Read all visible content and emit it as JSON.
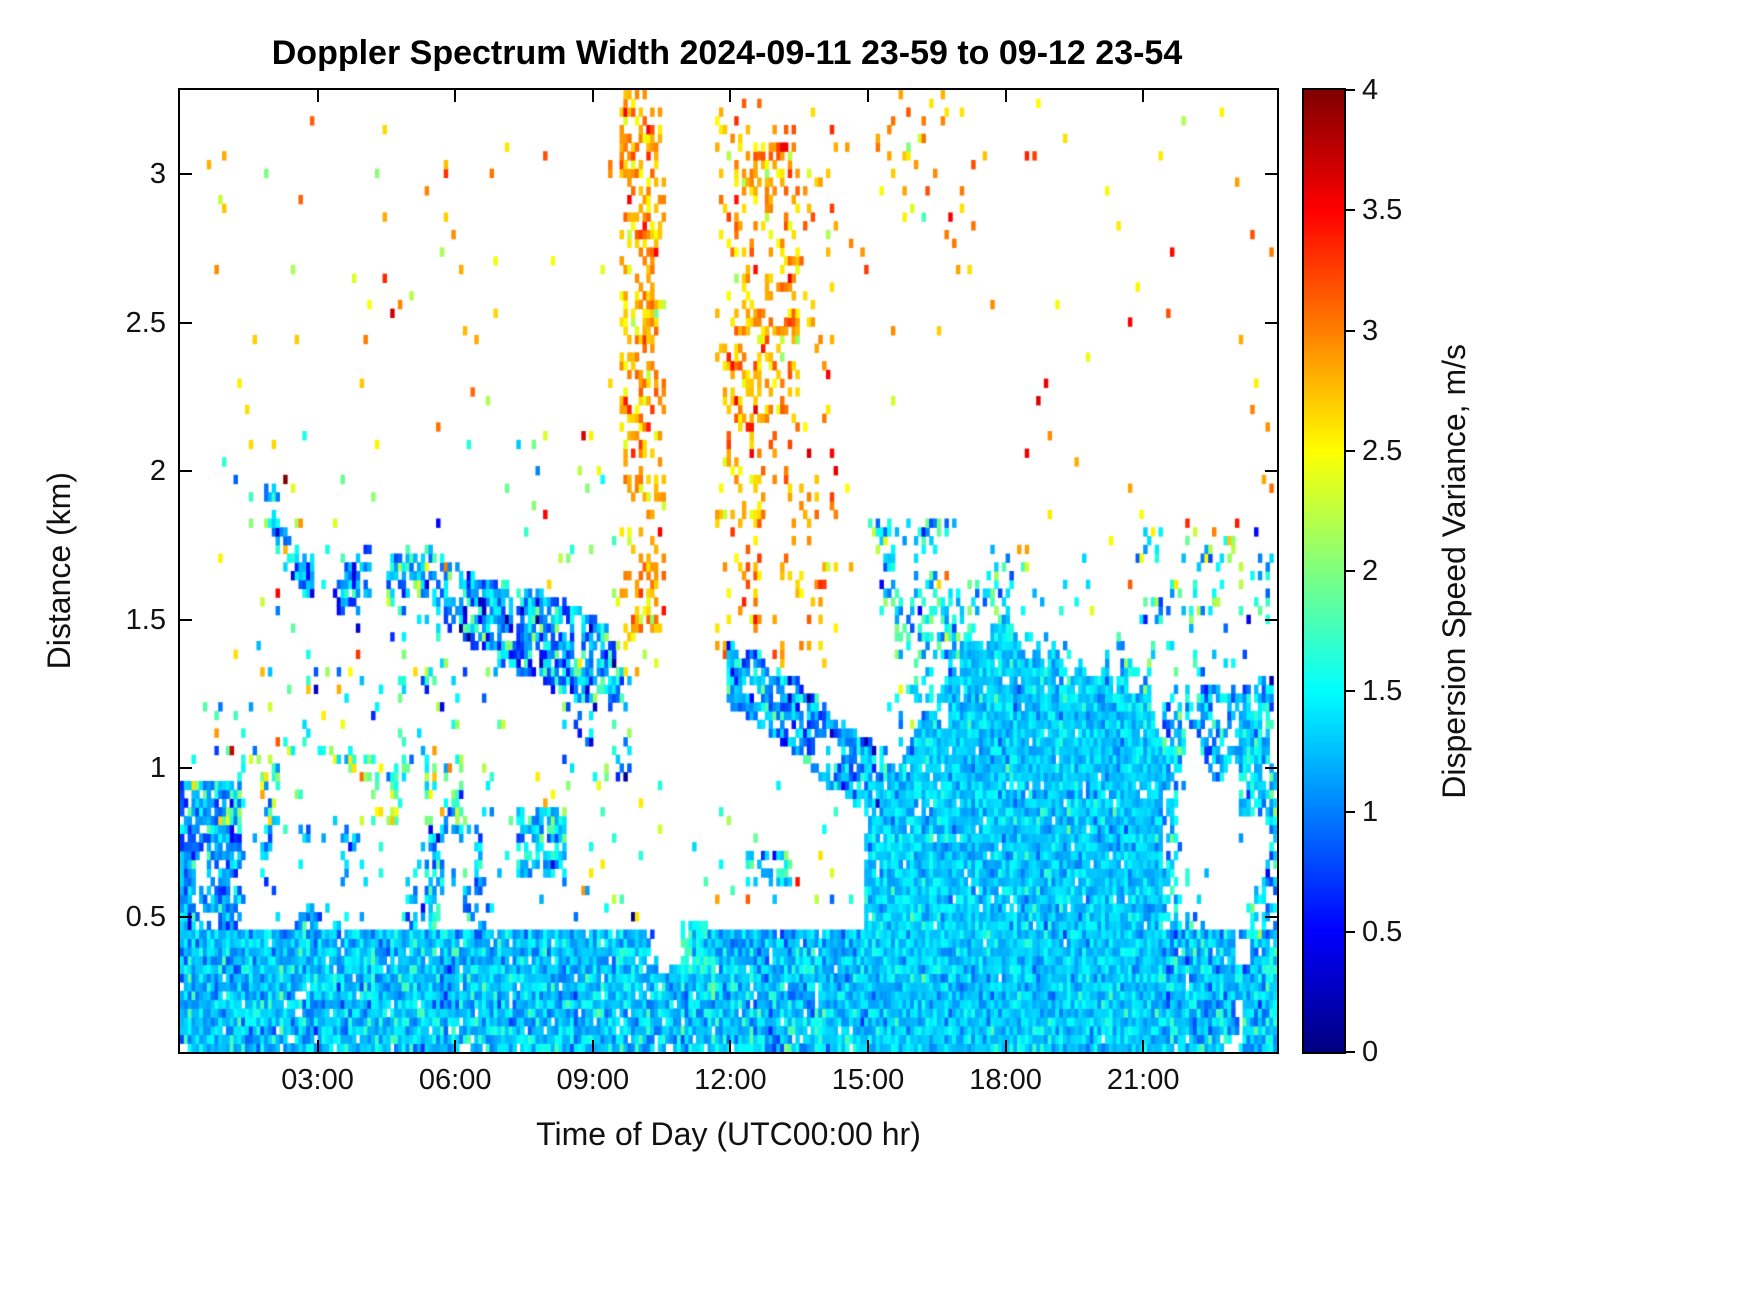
{
  "chart_data": {
    "type": "heatmap",
    "title": "Doppler Spectrum Width 2024-09-11 23-59 to 09-12 23-54",
    "xlabel": "Time of Day (UTC00:00 hr)",
    "ylabel": "Distance (km)",
    "colormap": "jet",
    "value_units": "m/s",
    "x_range_hours": [
      0,
      23.917
    ],
    "y_range_km": [
      0.046,
      3.283
    ],
    "grid": {
      "cols": 287,
      "rows": 110
    },
    "seed": 20240912,
    "colorbar": {
      "label": "Dispersion Speed Variance, m/s",
      "min": 0,
      "max": 4,
      "ticks": [
        {
          "v": 0,
          "label": "0"
        },
        {
          "v": 0.5,
          "label": "0.5"
        },
        {
          "v": 1,
          "label": "1"
        },
        {
          "v": 1.5,
          "label": "1.5"
        },
        {
          "v": 2,
          "label": "2"
        },
        {
          "v": 2.5,
          "label": "2.5"
        },
        {
          "v": 3,
          "label": "3"
        },
        {
          "v": 3.5,
          "label": "3.5"
        },
        {
          "v": 4,
          "label": "4"
        }
      ]
    },
    "x_ticks": [
      {
        "hour": 3,
        "label": "03:00"
      },
      {
        "hour": 6,
        "label": "06:00"
      },
      {
        "hour": 9,
        "label": "09:00"
      },
      {
        "hour": 12,
        "label": "12:00"
      },
      {
        "hour": 15,
        "label": "15:00"
      },
      {
        "hour": 18,
        "label": "18:00"
      },
      {
        "hour": 21,
        "label": "21:00"
      }
    ],
    "y_ticks": [
      {
        "v": 0.5,
        "label": "0.5"
      },
      {
        "v": 1,
        "label": "1"
      },
      {
        "v": 1.5,
        "label": "1.5"
      },
      {
        "v": 2,
        "label": "2"
      },
      {
        "v": 2.5,
        "label": "2.5"
      },
      {
        "v": 3,
        "label": "3"
      }
    ],
    "regions": [
      {
        "name": "surface-layer",
        "t": [
          0,
          23.95
        ],
        "d": [
          0.046,
          0.46
        ],
        "density": 0.95,
        "v": [
          1.25,
          0.2
        ],
        "noiseScale": 1.6,
        "holeThresh": 0.1
      },
      {
        "name": "surface-green-speckle",
        "t": [
          0,
          23.95
        ],
        "d": [
          0.046,
          0.4
        ],
        "density": 0.07,
        "v": [
          1.65,
          0.15
        ]
      },
      {
        "name": "lowleft-mid-mottle",
        "t": [
          0,
          6.8
        ],
        "d": [
          0.46,
          0.8
        ],
        "density": 0.5,
        "v": [
          1.2,
          0.35
        ],
        "noiseScale": 2.2,
        "holeThresh": 0.42
      },
      {
        "name": "lowleft-blue-patch",
        "t": [
          0,
          1.3
        ],
        "d": [
          0.46,
          0.95
        ],
        "density": 0.7,
        "v": [
          1.05,
          0.3
        ],
        "noiseScale": 2.0,
        "holeThresh": 0.25
      },
      {
        "name": "lowleft-upper-speckle",
        "t": [
          0,
          6.8
        ],
        "d": [
          0.8,
          1.05
        ],
        "density": 0.38,
        "v": [
          1.8,
          0.55
        ],
        "noiseScale": 2.5,
        "holeThresh": 0.35
      },
      {
        "name": "lowleft-sparse-above",
        "t": [
          0,
          7.2
        ],
        "d": [
          1.05,
          1.35
        ],
        "density": 0.07,
        "v": [
          1.8,
          0.7
        ]
      },
      {
        "name": "morning-mid-sparse",
        "t": [
          6.8,
          11.5
        ],
        "d": [
          0.5,
          1.0
        ],
        "density": 0.05,
        "v": [
          1.7,
          0.7
        ]
      },
      {
        "name": "blob-0800",
        "t": [
          7.3,
          8.45
        ],
        "d": [
          0.62,
          0.86
        ],
        "density": 0.75,
        "v": [
          1.25,
          0.3
        ],
        "noiseScale": 2.0,
        "holeThresh": 0.15
      },
      {
        "name": "clear-wedge-1100",
        "t": [
          10.2,
          11.15
        ],
        "d": [
          0.33,
          1.05
        ],
        "clear": true,
        "density": 0.9,
        "noiseScale": 2.0,
        "holeThresh": 0.15
      },
      {
        "name": "green-patch-1100",
        "t": [
          10.95,
          11.5
        ],
        "d": [
          0.3,
          0.5
        ],
        "density": 0.7,
        "v": [
          1.6,
          0.15
        ],
        "noiseScale": 2.0,
        "holeThresh": 0.2
      },
      {
        "name": "band-start-streak",
        "t": [
          1.8,
          2.2
        ],
        "d": [
          1.75,
          2.0
        ],
        "density": 0.35,
        "v": [
          1.3,
          0.45
        ]
      },
      {
        "name": "descending-band",
        "path": [
          [
            1.75,
            1.97
          ],
          [
            2.1,
            1.8
          ],
          [
            2.5,
            1.68
          ],
          [
            3.0,
            1.63
          ],
          [
            3.6,
            1.6
          ],
          [
            4.1,
            1.67
          ],
          [
            4.6,
            1.63
          ],
          [
            5.2,
            1.68
          ],
          [
            5.8,
            1.6
          ],
          [
            6.4,
            1.53
          ],
          [
            7.2,
            1.48
          ],
          [
            8.2,
            1.42
          ],
          [
            9.0,
            1.36
          ],
          [
            9.7,
            1.33
          ]
        ],
        "thickness": [
          0.04,
          0.06,
          0.07,
          0.07,
          0.08,
          0.08,
          0.08,
          0.09,
          0.1,
          0.12,
          0.14,
          0.16,
          0.15,
          0.11
        ],
        "density": 0.72,
        "v": [
          1.15,
          0.45
        ],
        "noiseScale": 2.3,
        "holeThresh": 0.2
      },
      {
        "name": "band-tail-sparse",
        "t": [
          8.3,
          9.8
        ],
        "d": [
          1.0,
          1.32
        ],
        "density": 0.15,
        "v": [
          1.3,
          0.5
        ]
      },
      {
        "name": "band-underhang",
        "t": [
          4.5,
          7.0
        ],
        "d": [
          1.25,
          1.55
        ],
        "density": 0.08,
        "v": [
          1.2,
          0.4
        ]
      },
      {
        "name": "upperleft-sparse",
        "t": [
          0.8,
          9.5
        ],
        "d": [
          1.35,
          2.15
        ],
        "density": 0.02,
        "v": [
          2.0,
          0.8
        ]
      },
      {
        "name": "upperleft-orange-sparse",
        "t": [
          0.4,
          4.0
        ],
        "d": [
          2.2,
          3.25
        ],
        "density": 0.012,
        "v": [
          2.7,
          0.4
        ]
      },
      {
        "name": "midleft-orange-sparse",
        "t": [
          4.0,
          9.5
        ],
        "d": [
          2.1,
          3.2
        ],
        "density": 0.01,
        "v": [
          2.7,
          0.4
        ]
      },
      {
        "name": "orange-column-1",
        "t": [
          9.55,
          10.6
        ],
        "d": [
          1.45,
          3.3
        ],
        "density": 0.2,
        "v": [
          2.85,
          0.25
        ]
      },
      {
        "name": "orange-column-1-core",
        "t": [
          9.7,
          10.4
        ],
        "d": [
          1.9,
          3.3
        ],
        "density": 0.3,
        "v": [
          2.85,
          0.25
        ]
      },
      {
        "name": "orange-column-1-base",
        "t": [
          9.5,
          10.5
        ],
        "d": [
          1.3,
          1.6
        ],
        "density": 0.15,
        "v": [
          2.7,
          0.35
        ]
      },
      {
        "name": "orange-region-2",
        "t": [
          11.7,
          14.3
        ],
        "d": [
          1.35,
          3.25
        ],
        "density": 0.1,
        "v": [
          2.85,
          0.3
        ]
      },
      {
        "name": "orange-region-2-core",
        "t": [
          12.0,
          13.5
        ],
        "d": [
          2.15,
          3.15
        ],
        "density": 0.27,
        "v": [
          2.85,
          0.28
        ]
      },
      {
        "name": "orange-region-2-lower",
        "t": [
          11.85,
          12.7
        ],
        "d": [
          1.5,
          2.6
        ],
        "density": 0.2,
        "v": [
          2.8,
          0.3
        ]
      },
      {
        "name": "midday-band",
        "path": [
          [
            11.9,
            1.32
          ],
          [
            12.5,
            1.28
          ],
          [
            13.0,
            1.22
          ],
          [
            13.6,
            1.16
          ],
          [
            14.2,
            1.06
          ],
          [
            14.9,
            0.98
          ],
          [
            15.7,
            0.93
          ]
        ],
        "thickness": [
          0.1,
          0.12,
          0.12,
          0.13,
          0.13,
          0.12,
          0.12
        ],
        "density": 0.8,
        "v": [
          1.1,
          0.38
        ],
        "noiseScale": 2.2,
        "holeThresh": 0.15
      },
      {
        "name": "midday-gap-sparse",
        "t": [
          11.3,
          15.0
        ],
        "d": [
          0.55,
          0.95
        ],
        "density": 0.03,
        "v": [
          1.6,
          0.8
        ]
      },
      {
        "name": "midday-thin-line",
        "t": [
          12.3,
          13.3
        ],
        "d": [
          0.6,
          0.73
        ],
        "density": 0.5,
        "v": [
          1.4,
          0.3
        ],
        "noiseScale": 3.0,
        "holeThresh": 0.3
      },
      {
        "name": "blob-15-16",
        "t": [
          14.8,
          16.9
        ],
        "d": [
          1.38,
          1.85
        ],
        "density": 0.4,
        "v": [
          1.45,
          0.4
        ],
        "noiseScale": 2.4,
        "holeThresh": 0.3
      },
      {
        "name": "afternoon-mass",
        "topPath": [
          [
            14.9,
            0.78
          ],
          [
            15.3,
            0.92
          ],
          [
            15.8,
            1.06
          ],
          [
            16.3,
            1.2
          ],
          [
            16.8,
            1.3
          ],
          [
            17.3,
            1.42
          ],
          [
            18.0,
            1.46
          ],
          [
            18.6,
            1.41
          ],
          [
            19.2,
            1.39
          ],
          [
            19.8,
            1.34
          ],
          [
            20.4,
            1.32
          ],
          [
            21.0,
            1.24
          ],
          [
            21.45,
            1.1
          ]
        ],
        "base": 0.046,
        "topJitter": 0.07,
        "density": 0.96,
        "v": [
          1.3,
          0.17
        ],
        "noiseScale": 1.8,
        "holeThresh": 0.04
      },
      {
        "name": "afternoon-top-mottle",
        "path": [
          [
            14.9,
            0.91
          ],
          [
            15.3,
            1.05
          ],
          [
            15.8,
            1.19
          ],
          [
            16.3,
            1.33
          ],
          [
            16.8,
            1.43
          ],
          [
            17.3,
            1.55
          ],
          [
            18.0,
            1.59
          ],
          [
            18.6,
            1.54
          ],
          [
            19.2,
            1.52
          ],
          [
            19.8,
            1.47
          ],
          [
            20.4,
            1.45
          ],
          [
            21.0,
            1.37
          ],
          [
            21.45,
            1.23
          ]
        ],
        "thickness": [
          0.13,
          0.13,
          0.13,
          0.13,
          0.13,
          0.13,
          0.13,
          0.13,
          0.13,
          0.13,
          0.13,
          0.13,
          0.13
        ],
        "density": 0.28,
        "v": [
          1.4,
          0.4
        ],
        "noiseScale": 2.4,
        "holeThresh": 0.4
      },
      {
        "name": "upper-sparse-18-21",
        "t": [
          17.5,
          21.0
        ],
        "d": [
          1.5,
          1.75
        ],
        "density": 0.03,
        "v": [
          1.5,
          0.4
        ]
      },
      {
        "name": "evening-mottle",
        "t": [
          21.45,
          23.95
        ],
        "d": [
          0.046,
          1.28
        ],
        "density": 0.55,
        "v": [
          1.3,
          0.3
        ],
        "noiseScale": 2.0,
        "holeThresh": 0.45
      },
      {
        "name": "evening-bottom",
        "t": [
          21.45,
          23.95
        ],
        "d": [
          0.046,
          0.35
        ],
        "density": 0.85,
        "v": [
          1.3,
          0.25
        ],
        "noiseScale": 2.0,
        "holeThresh": 0.15
      },
      {
        "name": "evening-hole",
        "t": [
          21.75,
          23.1
        ],
        "d": [
          0.5,
          0.95
        ],
        "clear": true,
        "density": 0.85,
        "noiseScale": 1.8,
        "holeThresh": 0.12
      },
      {
        "name": "right-edge-patch",
        "t": [
          23.1,
          23.95
        ],
        "d": [
          0.85,
          1.3
        ],
        "density": 0.65,
        "v": [
          1.35,
          0.3
        ],
        "noiseScale": 2.2,
        "holeThresh": 0.25
      },
      {
        "name": "evening-upper-sparse",
        "t": [
          21.0,
          23.95
        ],
        "d": [
          1.3,
          1.8
        ],
        "density": 0.1,
        "v": [
          1.5,
          0.5
        ]
      },
      {
        "name": "right-top-orange-sparse",
        "t": [
          14.5,
          23.9
        ],
        "d": [
          1.5,
          3.3
        ],
        "density": 0.008,
        "v": [
          2.8,
          0.35
        ]
      },
      {
        "name": "orange-cluster-1530",
        "t": [
          15.2,
          16.4
        ],
        "d": [
          2.85,
          3.3
        ],
        "density": 0.06,
        "v": [
          2.85,
          0.3
        ]
      },
      {
        "name": "teal-cluster-1600",
        "t": [
          15.8,
          16.35
        ],
        "d": [
          2.85,
          3.1
        ],
        "density": 0.06,
        "v": [
          1.55,
          0.25
        ]
      },
      {
        "name": "orange-cluster-1645",
        "t": [
          16.4,
          17.2
        ],
        "d": [
          2.6,
          3.3
        ],
        "density": 0.04,
        "v": [
          2.8,
          0.3
        ]
      }
    ]
  }
}
